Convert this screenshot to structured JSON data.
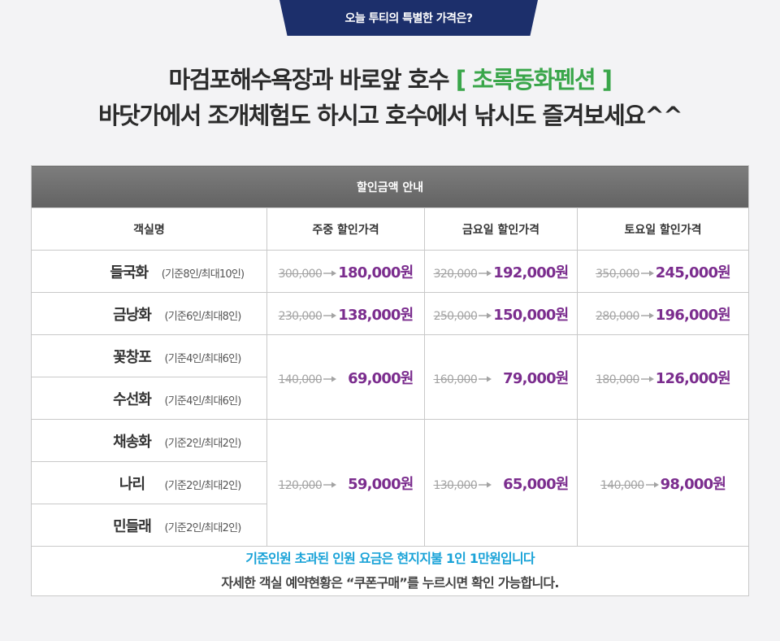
{
  "banner": {
    "tab_text": "오늘 투티의 특별한 가격은?"
  },
  "headline": {
    "line1_prefix": "마검포해수욕장과 바로앞 호수",
    "line1_brand": "[ 초록동화펜션 ]",
    "line2": "바닷가에서 조개체험도 하시고 호수에서 낚시도 즐겨보세요^^"
  },
  "table": {
    "caption": "할인금액 안내",
    "headers": [
      "객실명",
      "주중  할인가격",
      "금요일 할인가격",
      "토요일 할인가격"
    ],
    "rooms": [
      {
        "name": "들국화",
        "capacity": "(기준8인/최대10인)"
      },
      {
        "name": "금낭화",
        "capacity": "(기준6인/최대8인)"
      },
      {
        "name": "꽃창포",
        "capacity": "(기준4인/최대6인)"
      },
      {
        "name": "수선화",
        "capacity": "(기준4인/최대6인)"
      },
      {
        "name": "채송화",
        "capacity": "(기준2인/최대2인)"
      },
      {
        "name": "나리",
        "capacity": "(기준2인/최대2인)"
      },
      {
        "name": "민들래",
        "capacity": "(기준2인/최대2인)"
      }
    ],
    "prices": [
      {
        "weekday": {
          "orig": "300,000",
          "sale": "180,000원"
        },
        "friday": {
          "orig": "320,000",
          "sale": "192,000원"
        },
        "saturday": {
          "orig": "350,000",
          "sale": "245,000원"
        }
      },
      {
        "weekday": {
          "orig": "230,000",
          "sale": "138,000원"
        },
        "friday": {
          "orig": "250,000",
          "sale": "150,000원"
        },
        "saturday": {
          "orig": "280,000",
          "sale": "196,000원"
        }
      },
      {
        "weekday": {
          "orig": "140,000",
          "sale": "69,000원"
        },
        "friday": {
          "orig": "160,000",
          "sale": "79,000원"
        },
        "saturday": {
          "orig": "180,000",
          "sale": "126,000원"
        }
      },
      {
        "weekday": {
          "orig": "120,000",
          "sale": "59,000원"
        },
        "friday": {
          "orig": "130,000",
          "sale": "65,000원"
        },
        "saturday": {
          "orig": "140,000",
          "sale": "98,000원"
        }
      }
    ],
    "notes": {
      "extra_fee": "기준인원 초과된 인원 요금은 현지지불 1인 1만원입니다",
      "booking": "자세한 객실 예약현황은 “쿠폰구매”를 누르시면 확인 가능합니다."
    }
  },
  "colors": {
    "tab_bg": "#1c2f6b",
    "brand_green": "#3aa64a",
    "sale_purple": "#7b2d8e",
    "note_blue": "#1aa3d8",
    "caption_gray": "#6f6f6f"
  }
}
